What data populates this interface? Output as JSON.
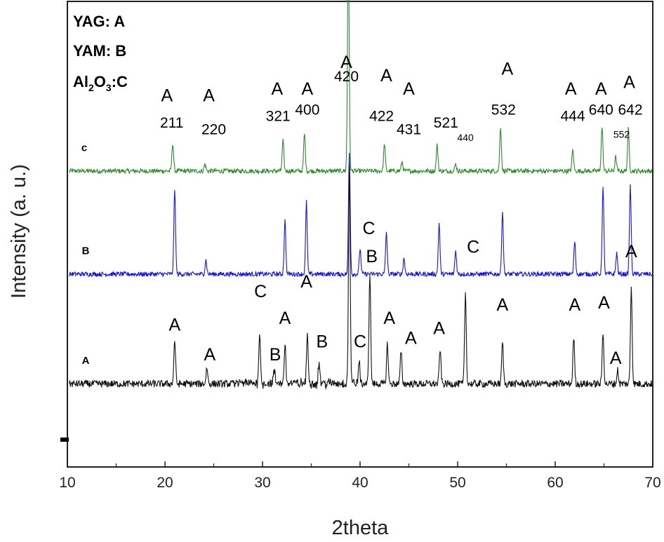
{
  "chart_data": {
    "type": "line",
    "xlabel": "2theta",
    "ylabel": "Intensity (a. u.)",
    "xlim": [
      10,
      70
    ],
    "x_ticks": [
      10,
      20,
      30,
      40,
      50,
      60,
      70
    ],
    "x_tick_labels": [
      "10",
      "20",
      "30",
      "40",
      "50",
      "60",
      "70"
    ],
    "legend": {
      "placement": "top-left",
      "entries": [
        {
          "main": "YAG: A",
          "sub": ""
        },
        {
          "main": "YAM: B",
          "sub": ""
        },
        {
          "main": "Al",
          "sub1": "2",
          "mid": "O",
          "sub2": "3",
          "tail": ":C"
        }
      ]
    },
    "series": [
      {
        "name": "c",
        "color": "#2e8b2e",
        "peaks": [
          {
            "x": 20.8,
            "h": 0.6
          },
          {
            "x": 24.1,
            "h": 0.15
          },
          {
            "x": 32.1,
            "h": 0.65
          },
          {
            "x": 34.3,
            "h": 0.8
          },
          {
            "x": 38.8,
            "h": 4.8
          },
          {
            "x": 42.5,
            "h": 0.6
          },
          {
            "x": 44.3,
            "h": 0.2
          },
          {
            "x": 47.9,
            "h": 0.55
          },
          {
            "x": 49.8,
            "h": 0.15
          },
          {
            "x": 54.4,
            "h": 0.95
          },
          {
            "x": 61.8,
            "h": 0.45
          },
          {
            "x": 64.8,
            "h": 0.95
          },
          {
            "x": 66.2,
            "h": 0.3
          },
          {
            "x": 67.5,
            "h": 0.9
          }
        ]
      },
      {
        "name": "B",
        "color": "#1414e6",
        "peaks": [
          {
            "x": 21.0,
            "h": 1.8
          },
          {
            "x": 24.2,
            "h": 0.3
          },
          {
            "x": 32.3,
            "h": 1.15
          },
          {
            "x": 34.5,
            "h": 1.55
          },
          {
            "x": 38.9,
            "h": 2.6
          },
          {
            "x": 40.0,
            "h": 0.55
          },
          {
            "x": 42.7,
            "h": 0.9
          },
          {
            "x": 44.5,
            "h": 0.35
          },
          {
            "x": 48.1,
            "h": 1.1
          },
          {
            "x": 49.8,
            "h": 0.5
          },
          {
            "x": 54.6,
            "h": 1.35
          },
          {
            "x": 62.0,
            "h": 0.7
          },
          {
            "x": 64.9,
            "h": 1.85
          },
          {
            "x": 66.3,
            "h": 0.45
          },
          {
            "x": 67.7,
            "h": 1.9
          }
        ]
      },
      {
        "name": "A",
        "color": "#111111",
        "peaks": [
          {
            "x": 21.0,
            "h": 0.95
          },
          {
            "x": 24.3,
            "h": 0.35
          },
          {
            "x": 29.7,
            "h": 1.1
          },
          {
            "x": 31.2,
            "h": 0.25
          },
          {
            "x": 32.3,
            "h": 0.85
          },
          {
            "x": 34.6,
            "h": 1.05
          },
          {
            "x": 35.8,
            "h": 0.45
          },
          {
            "x": 38.9,
            "h": 4.6
          },
          {
            "x": 39.9,
            "h": 0.45
          },
          {
            "x": 41.0,
            "h": 2.4
          },
          {
            "x": 42.8,
            "h": 0.85
          },
          {
            "x": 44.2,
            "h": 0.7
          },
          {
            "x": 48.2,
            "h": 0.75
          },
          {
            "x": 50.8,
            "h": 1.95
          },
          {
            "x": 54.6,
            "h": 0.9
          },
          {
            "x": 61.9,
            "h": 1.0
          },
          {
            "x": 64.9,
            "h": 1.1
          },
          {
            "x": 66.4,
            "h": 0.3
          },
          {
            "x": 67.8,
            "h": 2.1
          }
        ]
      }
    ],
    "trace_labels": [
      "c",
      "B",
      "A"
    ],
    "annotations": {
      "top_letters": [
        {
          "x": 20.2,
          "y": 22.5,
          "text": "A"
        },
        {
          "x": 24.5,
          "y": 22.5,
          "text": "A"
        },
        {
          "x": 31.5,
          "y": 22.6,
          "text": "A"
        },
        {
          "x": 34.6,
          "y": 22.6,
          "text": "A"
        },
        {
          "x": 38.6,
          "y": 23.0,
          "text": "A"
        },
        {
          "x": 42.7,
          "y": 22.8,
          "text": "A"
        },
        {
          "x": 45.0,
          "y": 22.6,
          "text": "A"
        },
        {
          "x": 55.1,
          "y": 22.9,
          "text": "A"
        },
        {
          "x": 61.6,
          "y": 22.6,
          "text": "A"
        },
        {
          "x": 64.7,
          "y": 22.6,
          "text": "A"
        },
        {
          "x": 67.6,
          "y": 22.7,
          "text": "A"
        }
      ],
      "hkl": [
        {
          "x": 20.7,
          "y": 22.1,
          "text": "211",
          "size": "n"
        },
        {
          "x": 25.0,
          "y": 22.0,
          "text": "220",
          "size": "n"
        },
        {
          "x": 31.6,
          "y": 22.2,
          "text": "321",
          "size": "n"
        },
        {
          "x": 34.6,
          "y": 22.3,
          "text": "400",
          "size": "n"
        },
        {
          "x": 38.6,
          "y": 22.8,
          "text": "420",
          "size": "n"
        },
        {
          "x": 42.2,
          "y": 22.2,
          "text": "422",
          "size": "n"
        },
        {
          "x": 45.0,
          "y": 22.0,
          "text": "431",
          "size": "n"
        },
        {
          "x": 48.8,
          "y": 22.1,
          "text": "521",
          "size": "n"
        },
        {
          "x": 50.8,
          "y": 21.9,
          "text": "440",
          "size": "s"
        },
        {
          "x": 54.7,
          "y": 22.3,
          "text": "532",
          "size": "n"
        },
        {
          "x": 61.8,
          "y": 22.2,
          "text": "444",
          "size": "n"
        },
        {
          "x": 64.7,
          "y": 22.3,
          "text": "640",
          "size": "n"
        },
        {
          "x": 66.8,
          "y": 21.95,
          "text": "552",
          "size": "s"
        },
        {
          "x": 67.7,
          "y": 22.3,
          "text": "642",
          "size": "n"
        }
      ],
      "b_letters": [
        {
          "x": 40.9,
          "y": 20.5,
          "text": "C"
        }
      ],
      "a_letters": [
        {
          "x": 21.0,
          "y": 19.05,
          "text": "A"
        },
        {
          "x": 24.6,
          "y": 18.6,
          "text": "A"
        },
        {
          "x": 29.8,
          "y": 19.55,
          "text": "C"
        },
        {
          "x": 31.3,
          "y": 18.6,
          "text": "B"
        },
        {
          "x": 32.3,
          "y": 19.15,
          "text": "A"
        },
        {
          "x": 34.5,
          "y": 19.7,
          "text": "A"
        },
        {
          "x": 36.1,
          "y": 18.8,
          "text": "B"
        },
        {
          "x": 40.0,
          "y": 18.8,
          "text": "C"
        },
        {
          "x": 41.2,
          "y": 20.08,
          "text": "B"
        },
        {
          "x": 43.0,
          "y": 19.15,
          "text": "A"
        },
        {
          "x": 45.2,
          "y": 18.85,
          "text": "A"
        },
        {
          "x": 48.1,
          "y": 19.0,
          "text": "A"
        },
        {
          "x": 51.6,
          "y": 20.22,
          "text": "C"
        },
        {
          "x": 54.6,
          "y": 19.35,
          "text": "A"
        },
        {
          "x": 62.0,
          "y": 19.35,
          "text": "A"
        },
        {
          "x": 65.0,
          "y": 19.38,
          "text": "A"
        },
        {
          "x": 66.2,
          "y": 18.55,
          "text": "A"
        },
        {
          "x": 67.8,
          "y": 20.15,
          "text": "A"
        }
      ]
    }
  }
}
